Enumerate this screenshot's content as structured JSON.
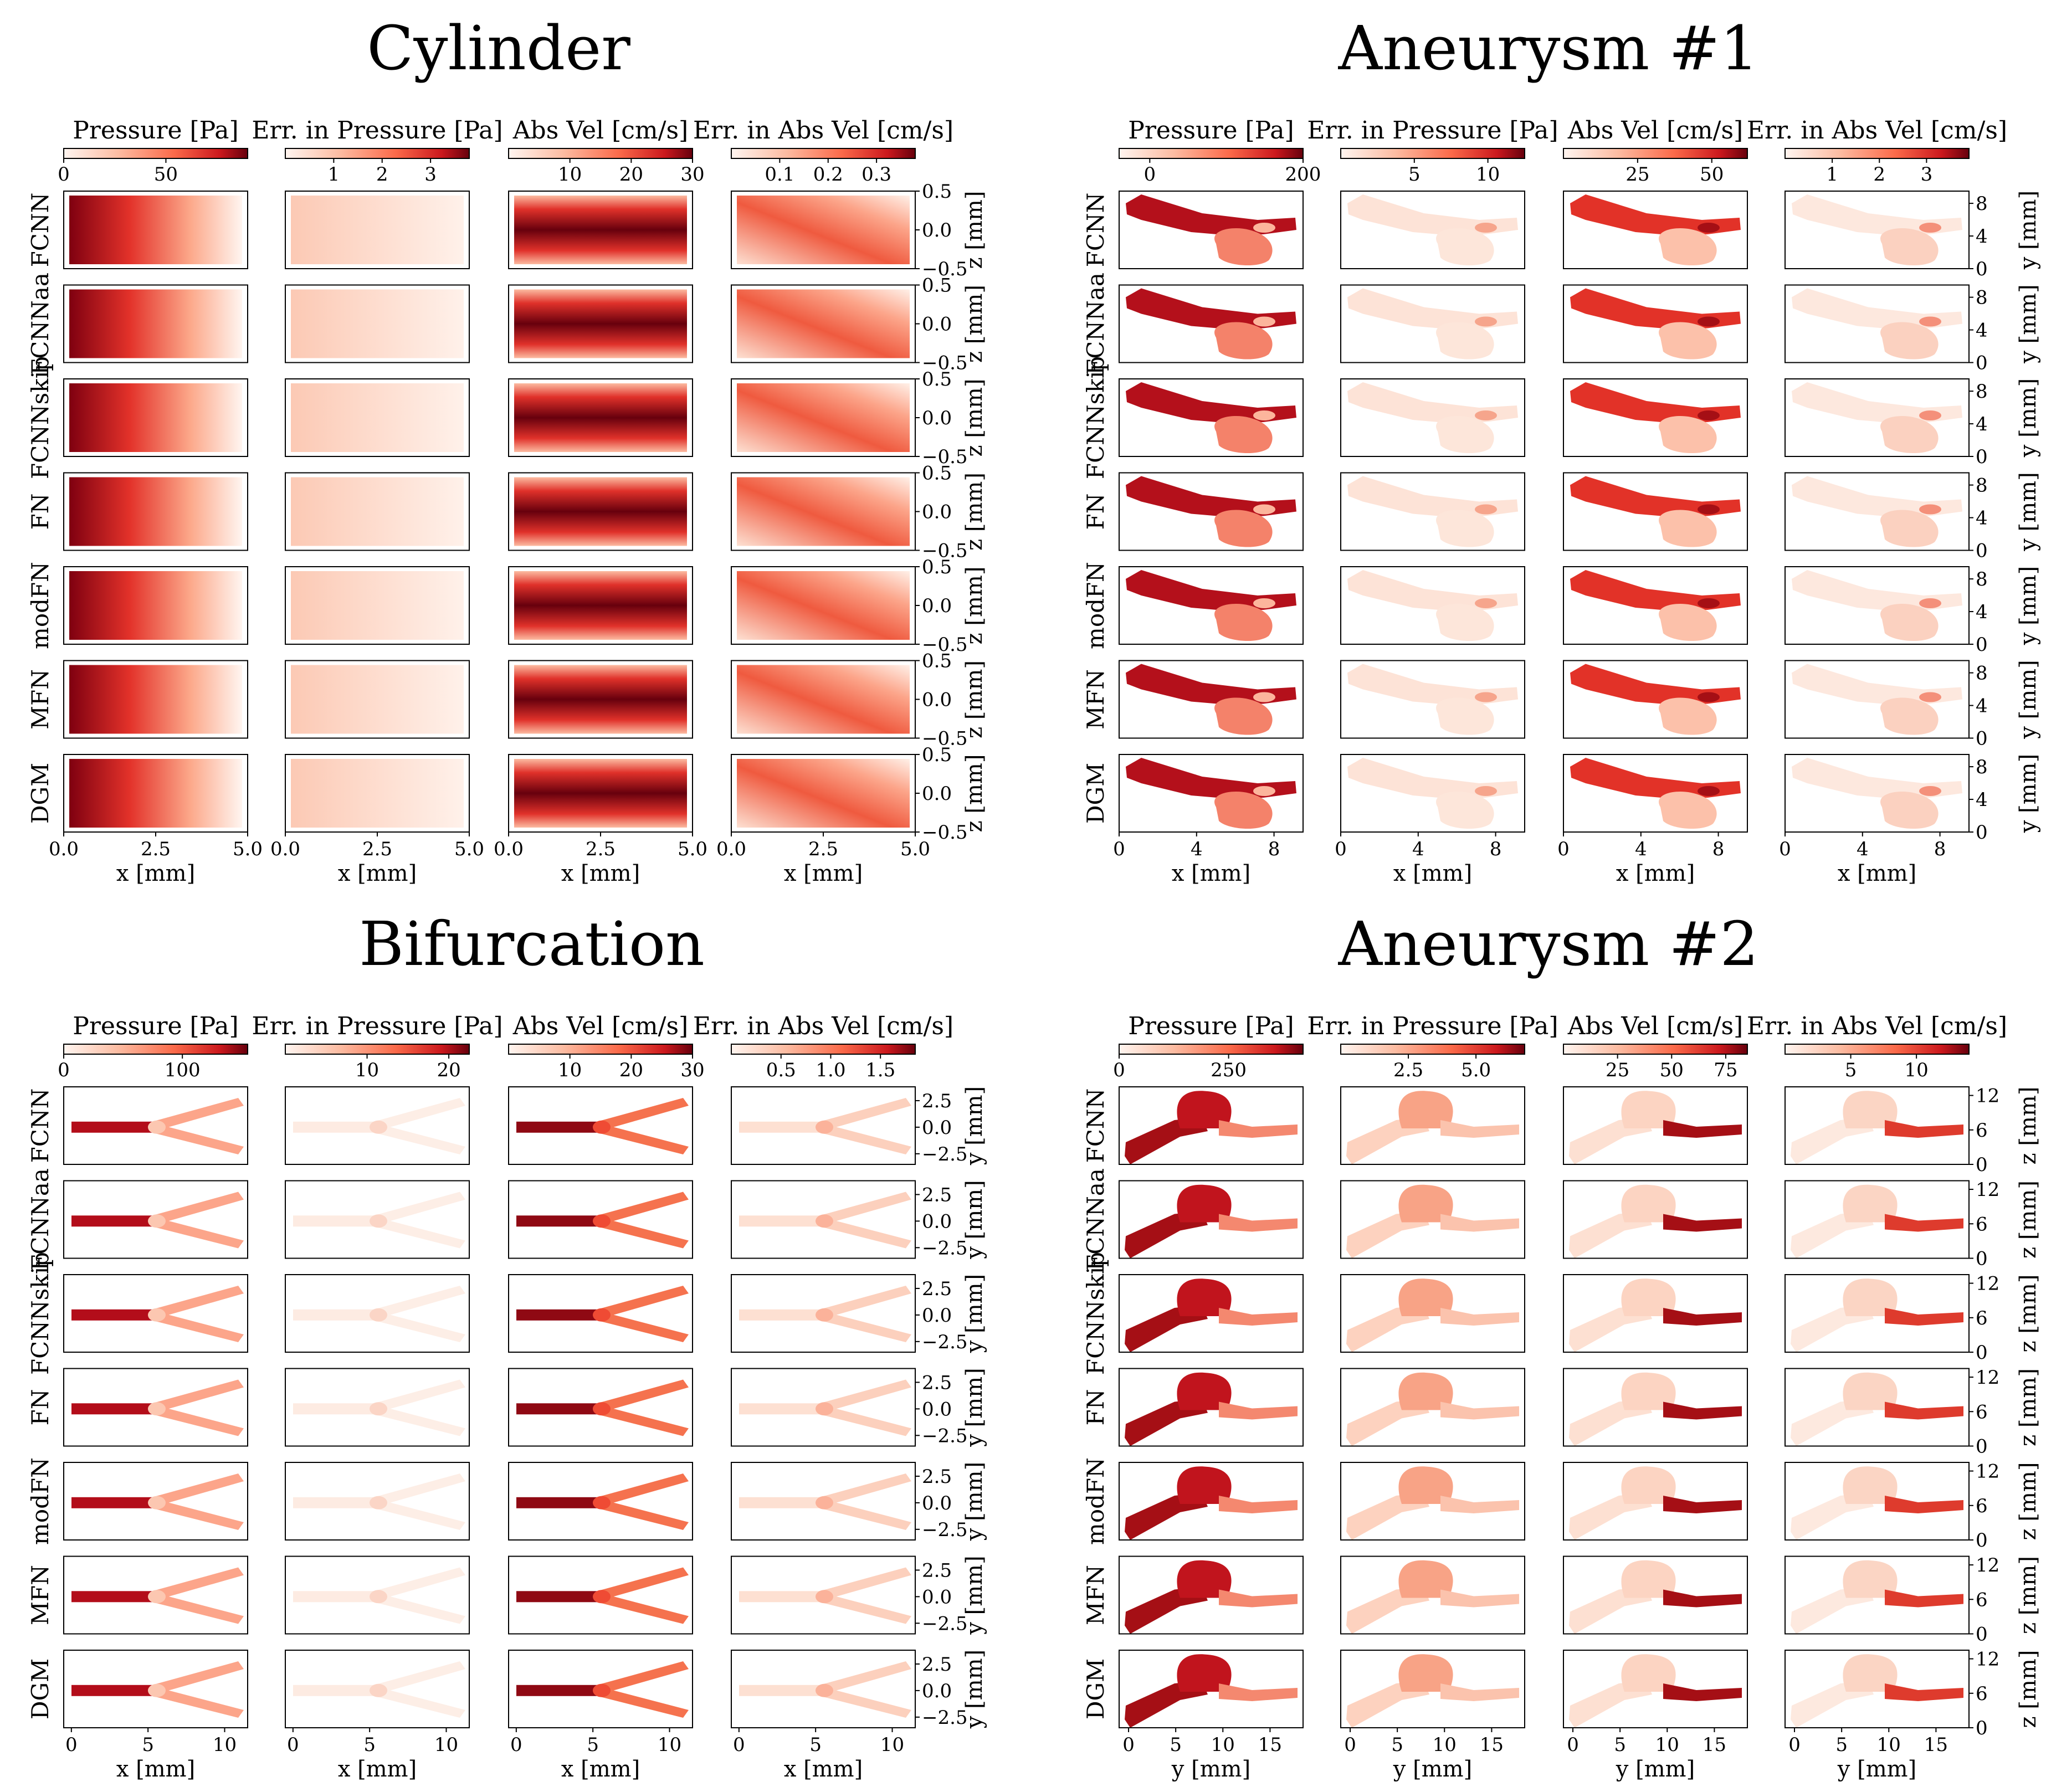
{
  "colors": {
    "low": "#fff5f0",
    "mid": "#fb6a4a",
    "high": "#67000d",
    "frame": "#000000"
  },
  "rows": [
    "FCNN",
    "FCNNaa",
    "FCNNskip",
    "FN",
    "modFN",
    "MFN",
    "DGM"
  ],
  "columns": [
    "Pressure [Pa]",
    "Err. in Pressure [Pa]",
    "Abs Vel  [cm/s]",
    "Err. in Abs Vel [cm/s]"
  ],
  "chart_data": [
    {
      "type": "heatmap",
      "title": "Cylinder",
      "geometry": "cylinder",
      "xlabel": "x [mm]",
      "ylabel": "z [mm]",
      "xlim": [
        0,
        5
      ],
      "ylim": [
        -0.5,
        0.5
      ],
      "xticks": [
        "0.0",
        "2.5",
        "5.0"
      ],
      "yticks": [
        "0.5",
        "0.0",
        "−0.5"
      ],
      "colorbars": [
        {
          "label": "Pressure [Pa]",
          "range": [
            0,
            90
          ],
          "ticks": [
            "0",
            "50"
          ],
          "tick_values": [
            0,
            50
          ]
        },
        {
          "label": "Err. in Pressure [Pa]",
          "range": [
            0,
            3.8
          ],
          "ticks": [
            "1",
            "2",
            "3"
          ],
          "tick_values": [
            1,
            2,
            3
          ]
        },
        {
          "label": "Abs Vel  [cm/s]",
          "range": [
            0,
            30
          ],
          "ticks": [
            "10",
            "20",
            "30"
          ],
          "tick_values": [
            10,
            20,
            30
          ]
        },
        {
          "label": "Err. in Abs Vel [cm/s]",
          "range": [
            0,
            0.38
          ],
          "ticks": [
            "0.1",
            "0.2",
            "0.3"
          ],
          "tick_values": [
            0.1,
            0.2,
            0.3
          ]
        }
      ]
    },
    {
      "type": "heatmap",
      "title": "Aneurysm #1",
      "geometry": "aneurysm1",
      "xlabel": "x [mm]",
      "ylabel": "y [mm]",
      "xlim": [
        0,
        9.5
      ],
      "ylim": [
        0,
        9.5
      ],
      "xticks": [
        "0",
        "4",
        "8"
      ],
      "yticks": [
        "8",
        "4",
        "0"
      ],
      "colorbars": [
        {
          "label": "Pressure [Pa]",
          "range": [
            -40,
            200
          ],
          "ticks": [
            "0",
            "200"
          ],
          "tick_values": [
            0,
            200
          ]
        },
        {
          "label": "Err. in Pressure [Pa]",
          "range": [
            0,
            12.5
          ],
          "ticks": [
            "5",
            "10"
          ],
          "tick_values": [
            5,
            10
          ]
        },
        {
          "label": "Abs Vel  [cm/s]",
          "range": [
            0,
            62
          ],
          "ticks": [
            "25",
            "50"
          ],
          "tick_values": [
            25,
            50
          ]
        },
        {
          "label": "Err. in Abs Vel [cm/s]",
          "range": [
            0,
            3.9
          ],
          "ticks": [
            "1",
            "2",
            "3"
          ],
          "tick_values": [
            1,
            2,
            3
          ]
        }
      ]
    },
    {
      "type": "heatmap",
      "title": "Bifurcation",
      "geometry": "bifurcation",
      "xlabel": "x [mm]",
      "ylabel": "y [mm]",
      "xlim": [
        -0.5,
        11.5
      ],
      "ylim": [
        -3.5,
        3.8
      ],
      "xticks": [
        "0",
        "5",
        "10"
      ],
      "yticks": [
        "2.5",
        "0.0",
        "−2.5"
      ],
      "colorbars": [
        {
          "label": "Pressure [Pa]",
          "range": [
            0,
            155
          ],
          "ticks": [
            "0",
            "100"
          ],
          "tick_values": [
            0,
            100
          ]
        },
        {
          "label": "Err. in Pressure [Pa]",
          "range": [
            0,
            22.5
          ],
          "ticks": [
            "10",
            "20"
          ],
          "tick_values": [
            10,
            20
          ]
        },
        {
          "label": "Abs Vel  [cm/s]",
          "range": [
            0,
            30
          ],
          "ticks": [
            "10",
            "20",
            "30"
          ],
          "tick_values": [
            10,
            20,
            30
          ]
        },
        {
          "label": "Err. in Abs Vel [cm/s]",
          "range": [
            0,
            1.85
          ],
          "ticks": [
            "0.5",
            "1.0",
            "1.5"
          ],
          "tick_values": [
            0.5,
            1.0,
            1.5
          ]
        }
      ]
    },
    {
      "type": "heatmap",
      "title": "Aneurysm #2",
      "geometry": "aneurysm2",
      "xlabel": "y [mm]",
      "ylabel": "z [mm]",
      "xlim": [
        -1,
        18.5
      ],
      "ylim": [
        0,
        13.5
      ],
      "xticks": [
        "0",
        "5",
        "10",
        "15"
      ],
      "yticks": [
        "12",
        "6",
        "0"
      ],
      "colorbars": [
        {
          "label": "Pressure [Pa]",
          "range": [
            0,
            420
          ],
          "ticks": [
            "0",
            "250"
          ],
          "tick_values": [
            0,
            250
          ]
        },
        {
          "label": "Err. in Pressure [Pa]",
          "range": [
            0,
            6.8
          ],
          "ticks": [
            "2.5",
            "5.0"
          ],
          "tick_values": [
            2.5,
            5.0
          ]
        },
        {
          "label": "Abs Vel  [cm/s]",
          "range": [
            0,
            85
          ],
          "ticks": [
            "25",
            "50",
            "75"
          ],
          "tick_values": [
            25,
            50,
            75
          ]
        },
        {
          "label": "Err. in Abs Vel [cm/s]",
          "range": [
            0,
            14
          ],
          "ticks": [
            "5",
            "10"
          ],
          "tick_values": [
            5,
            10
          ]
        }
      ]
    }
  ]
}
